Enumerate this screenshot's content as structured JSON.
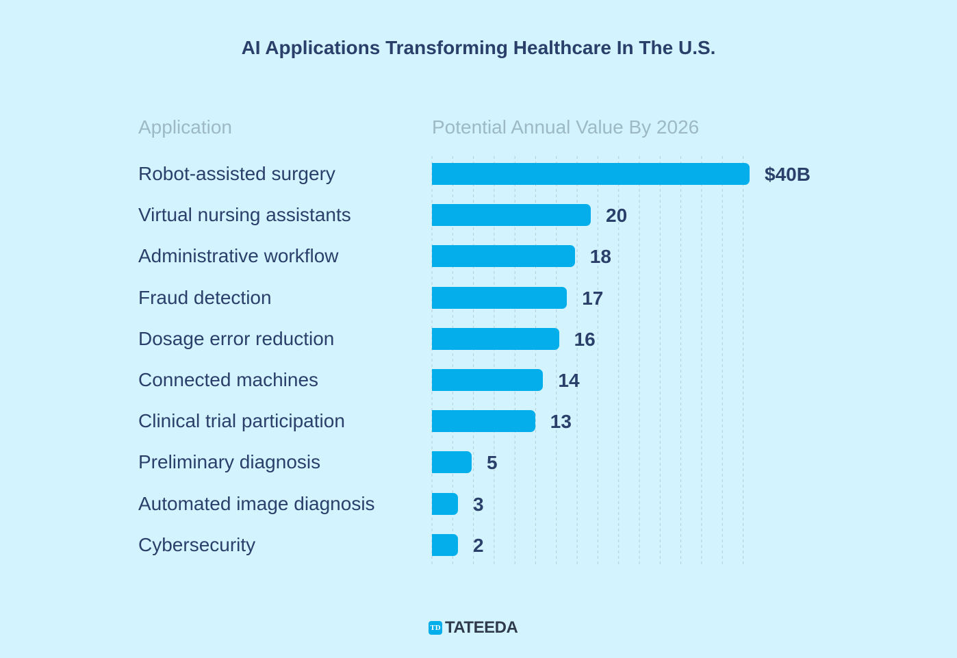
{
  "chart_data": {
    "type": "bar",
    "orientation": "horizontal",
    "title": "AI Applications Transforming Healthcare In The U.S.",
    "category_header": "Application",
    "value_header": "Potential Annual Value By 2026",
    "categories": [
      "Robot-assisted surgery",
      "Virtual nursing assistants",
      "Administrative workflow",
      "Fraud detection",
      "Dosage error reduction",
      "Connected machines",
      "Clinical trial participation",
      "Preliminary diagnosis",
      "Automated image diagnosis",
      "Cybersecurity"
    ],
    "values": [
      40,
      20,
      18,
      17,
      16,
      14,
      13,
      5,
      3,
      2
    ],
    "data_labels": [
      "$40B",
      "20",
      "18",
      "17",
      "16",
      "14",
      "13",
      "5",
      "3",
      "2"
    ],
    "unit": "$B",
    "xlim": [
      0,
      40
    ],
    "grid": "vertical dashed",
    "bar_color": "#03aeeb"
  },
  "brand": {
    "logo_text": "TATEEDA",
    "logo_mark": "TD"
  }
}
